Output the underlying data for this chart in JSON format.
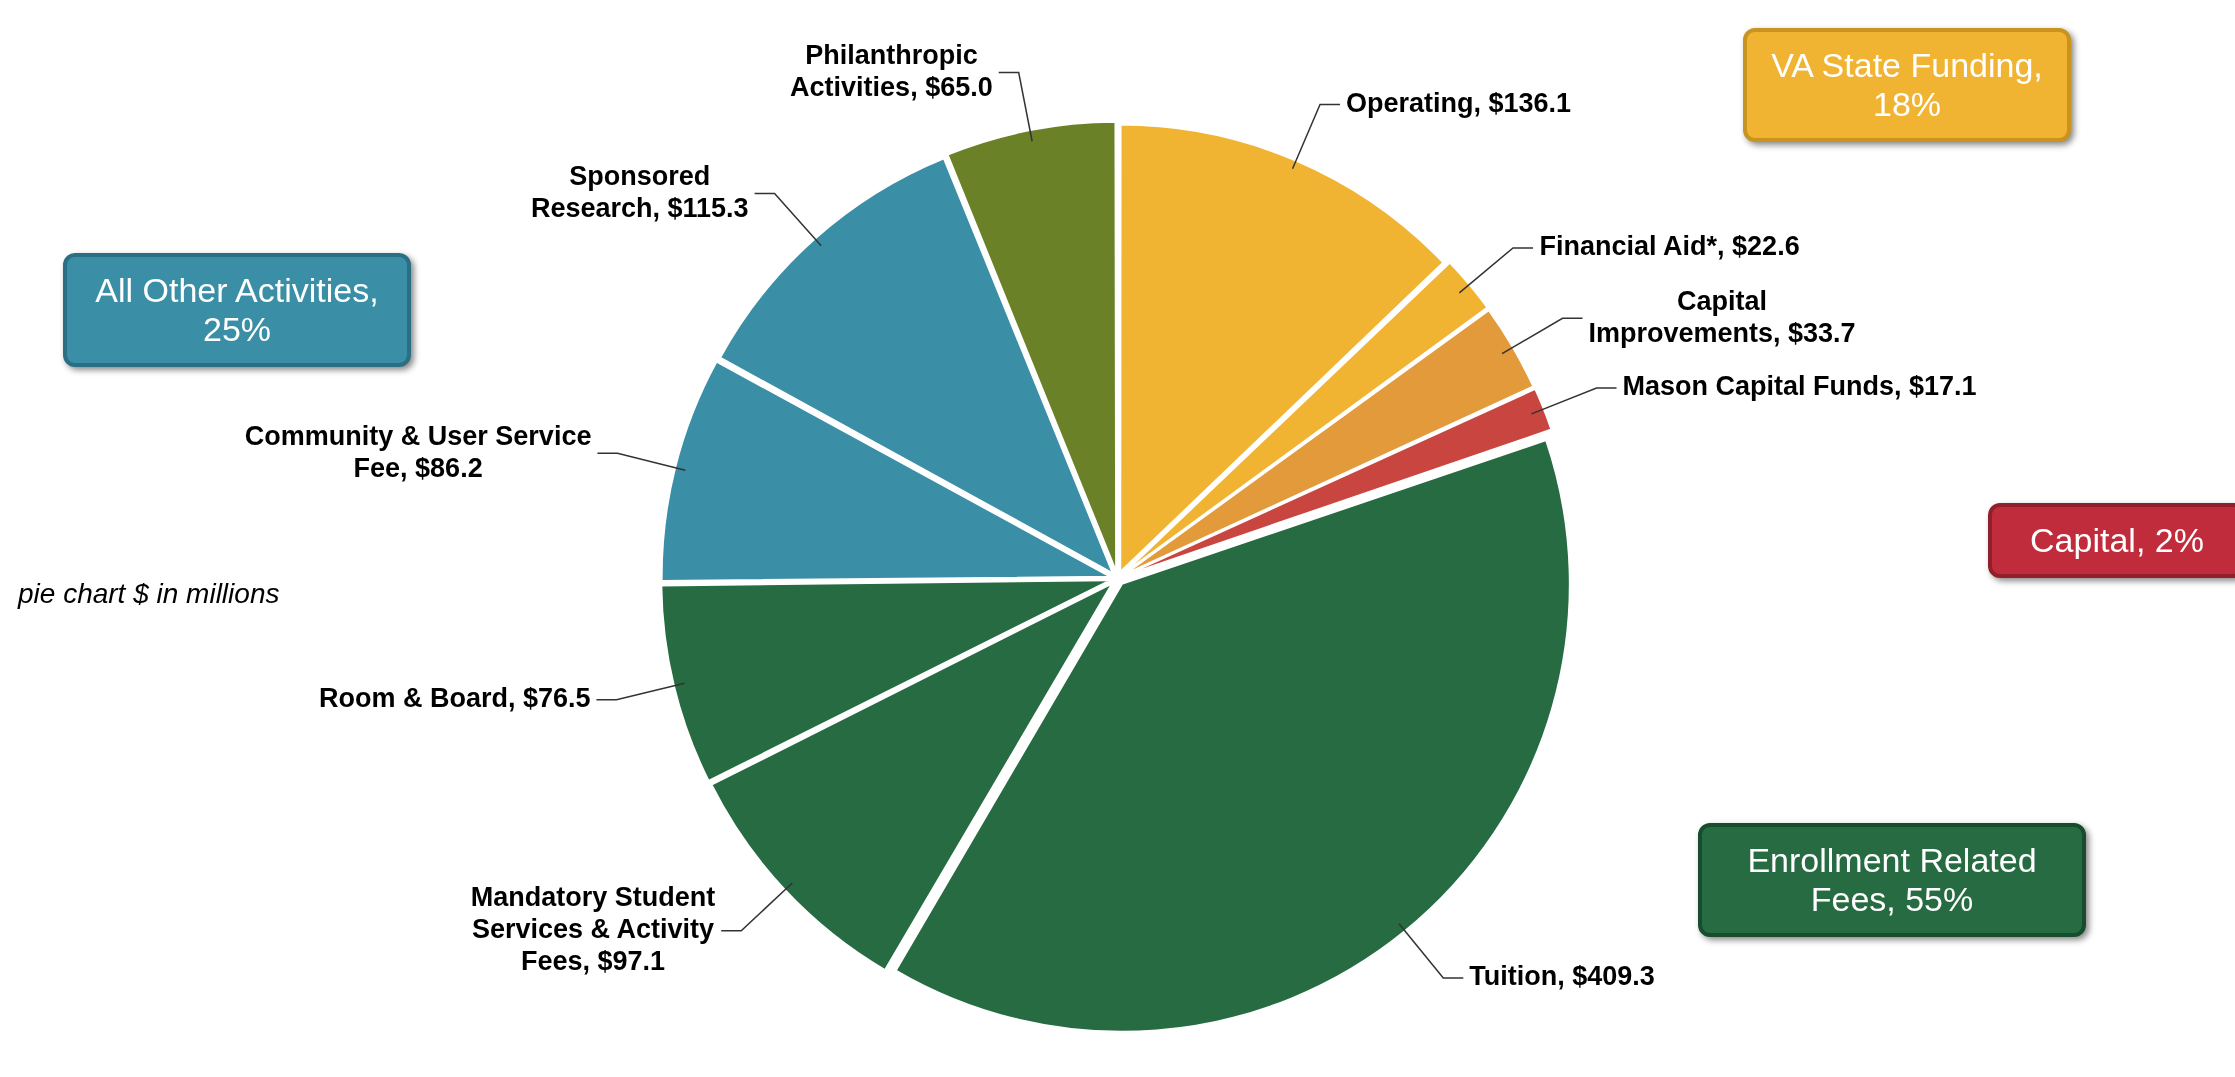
{
  "chart_data": {
    "type": "pie",
    "categories": [
      "Operating",
      "Financial Aid*",
      "Capital Improvements",
      "Mason Capital Funds",
      "Tuition",
      "Mandatory Student Services & Activity Fees",
      "Room & Board",
      "Community & User Service Fee",
      "Sponsored Research",
      "Philanthropic Activities"
    ],
    "values": [
      136.1,
      22.6,
      33.7,
      17.1,
      409.3,
      97.1,
      76.5,
      86.2,
      115.3,
      65.0
    ],
    "value_labels": [
      "$136.1",
      "$22.6",
      "$33.7",
      "$17.1",
      "$409.3",
      "$97.1",
      "$76.5",
      "$86.2",
      "$115.3",
      "$65.0"
    ],
    "colors": [
      "#f0b432",
      "#f0b432",
      "#e39a3a",
      "#c9453f",
      "#266b41",
      "#266b41",
      "#266b41",
      "#3a8fa6",
      "#3a8fa6",
      "#6a8127"
    ],
    "annotations": [
      "VA State Funding, 18%",
      "All Other Activities, 25%",
      "Capital, 2%",
      "Enrollment Related Fees, 55%",
      "pie chart $ in  millions"
    ],
    "legend": false
  }
}
